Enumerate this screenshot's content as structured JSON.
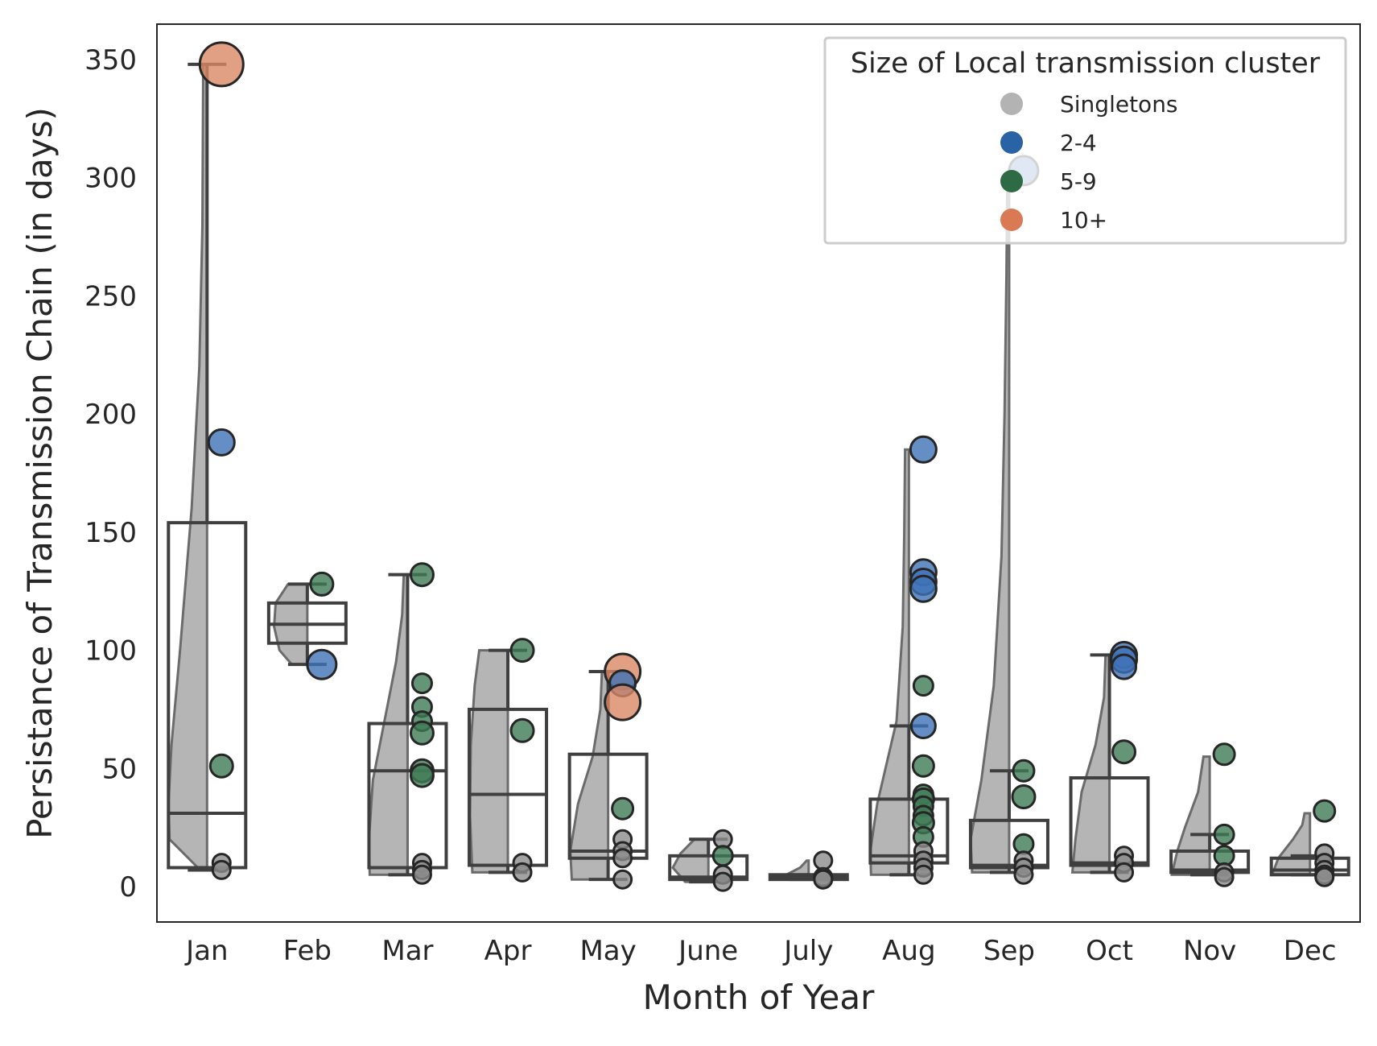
{
  "chart_data": {
    "type": "raincloud",
    "xlabel": "Month of Year",
    "ylabel": "Persistance of Transmission Chain (in days)",
    "ylim": [
      -15,
      365
    ],
    "yticks": [
      0,
      50,
      100,
      150,
      200,
      250,
      300,
      350
    ],
    "categories": [
      "Jan",
      "Feb",
      "Mar",
      "Apr",
      "May",
      "June",
      "July",
      "Aug",
      "Sep",
      "Oct",
      "Nov",
      "Dec"
    ],
    "grid": false,
    "legend": {
      "title": "Size of Local transmission cluster",
      "position": "top-right",
      "entries": [
        {
          "label": "Singletons",
          "color": "#b3b3b3"
        },
        {
          "label": "2-4",
          "color": "#2a62a6"
        },
        {
          "label": "5-9",
          "color": "#2e6b45"
        },
        {
          "label": "10+",
          "color": "#d97a55"
        }
      ]
    },
    "colors": {
      "Singletons": "#8c8c8c",
      "2-4": "#3f72b6",
      "5-9": "#3f7a55",
      "10+": "#d98764",
      "cloud": "#b5b5b5",
      "cloud_edge": "#6b6b6b",
      "box": "#3f3f3f"
    },
    "boxes": [
      {
        "month": "Jan",
        "q1": 8,
        "median": 31,
        "q3": 154,
        "whisker_low": 7,
        "whisker_high": 348
      },
      {
        "month": "Feb",
        "q1": 103,
        "median": 111,
        "q3": 120,
        "whisker_low": 94,
        "whisker_high": 128
      },
      {
        "month": "Mar",
        "q1": 8,
        "median": 49,
        "q3": 69,
        "whisker_low": 5,
        "whisker_high": 132
      },
      {
        "month": "Apr",
        "q1": 9,
        "median": 39,
        "q3": 75,
        "whisker_low": 6,
        "whisker_high": 100
      },
      {
        "month": "May",
        "q1": 12,
        "median": 15,
        "q3": 56,
        "whisker_low": 3,
        "whisker_high": 91
      },
      {
        "month": "June",
        "q1": 3,
        "median": 4,
        "q3": 13,
        "whisker_low": 2,
        "whisker_high": 20
      },
      {
        "month": "July",
        "q1": 3,
        "median": 4,
        "q3": 5,
        "whisker_low": 3,
        "whisker_high": 5
      },
      {
        "month": "Aug",
        "q1": 10,
        "median": 13,
        "q3": 37,
        "whisker_low": 5,
        "whisker_high": 68
      },
      {
        "month": "Sep",
        "q1": 8,
        "median": 9,
        "q3": 28,
        "whisker_low": 6,
        "whisker_high": 49
      },
      {
        "month": "Oct",
        "q1": 9,
        "median": 10,
        "q3": 46,
        "whisker_low": 6,
        "whisker_high": 98
      },
      {
        "month": "Nov",
        "q1": 6,
        "median": 7,
        "q3": 15,
        "whisker_low": 5,
        "whisker_high": 22
      },
      {
        "month": "Dec",
        "q1": 5,
        "median": 7,
        "q3": 12,
        "whisker_low": 5,
        "whisker_high": 13
      }
    ],
    "clouds": [
      {
        "month": "Jan",
        "profile": [
          [
            7,
            0.18
          ],
          [
            20,
            0.97
          ],
          [
            35,
            1
          ],
          [
            60,
            0.92
          ],
          [
            100,
            0.7
          ],
          [
            160,
            0.4
          ],
          [
            220,
            0.2
          ],
          [
            280,
            0.12
          ],
          [
            348,
            0.1
          ]
        ]
      },
      {
        "month": "Feb",
        "profile": [
          [
            94,
            0.4
          ],
          [
            100,
            0.72
          ],
          [
            110,
            0.86
          ],
          [
            120,
            0.82
          ],
          [
            128,
            0.5
          ]
        ]
      },
      {
        "month": "Mar",
        "profile": [
          [
            5,
            0.98
          ],
          [
            20,
            1
          ],
          [
            45,
            0.9
          ],
          [
            70,
            0.6
          ],
          [
            95,
            0.3
          ],
          [
            115,
            0.14
          ],
          [
            132,
            0.1
          ]
        ]
      },
      {
        "month": "Apr",
        "profile": [
          [
            6,
            0.92
          ],
          [
            30,
            0.98
          ],
          [
            60,
            0.96
          ],
          [
            85,
            0.86
          ],
          [
            100,
            0.74
          ]
        ]
      },
      {
        "month": "May",
        "profile": [
          [
            3,
            0.94
          ],
          [
            15,
            0.98
          ],
          [
            35,
            0.78
          ],
          [
            55,
            0.4
          ],
          [
            75,
            0.2
          ],
          [
            91,
            0.16
          ]
        ]
      },
      {
        "month": "June",
        "profile": [
          [
            2,
            0.6
          ],
          [
            8,
            0.92
          ],
          [
            14,
            0.72
          ],
          [
            20,
            0.36
          ]
        ]
      },
      {
        "month": "July",
        "profile": [
          [
            3,
            0.86
          ],
          [
            5,
            0.58
          ],
          [
            8,
            0.22
          ],
          [
            11,
            0.05
          ]
        ]
      },
      {
        "month": "Aug",
        "profile": [
          [
            5,
            0.98
          ],
          [
            15,
            1
          ],
          [
            35,
            0.82
          ],
          [
            70,
            0.32
          ],
          [
            110,
            0.16
          ],
          [
            150,
            0.12
          ],
          [
            185,
            0.1
          ]
        ]
      },
      {
        "month": "Sep",
        "profile": [
          [
            6,
            0.96
          ],
          [
            20,
            1
          ],
          [
            45,
            0.72
          ],
          [
            85,
            0.4
          ],
          [
            140,
            0.2
          ],
          [
            200,
            0.12
          ],
          [
            260,
            0.07
          ],
          [
            300,
            0.05
          ]
        ]
      },
      {
        "month": "Oct",
        "profile": [
          [
            6,
            0.96
          ],
          [
            20,
            0.88
          ],
          [
            40,
            0.72
          ],
          [
            60,
            0.36
          ],
          [
            80,
            0.14
          ],
          [
            98,
            0.1
          ]
        ]
      },
      {
        "month": "Nov",
        "profile": [
          [
            5,
            0.98
          ],
          [
            15,
            0.84
          ],
          [
            25,
            0.64
          ],
          [
            40,
            0.3
          ],
          [
            55,
            0.16
          ]
        ]
      },
      {
        "month": "Dec",
        "profile": [
          [
            5,
            0.98
          ],
          [
            12,
            0.82
          ],
          [
            20,
            0.44
          ],
          [
            26,
            0.2
          ],
          [
            31,
            0.14
          ]
        ]
      }
    ],
    "points": [
      {
        "month": "Jan",
        "y": 348,
        "group": "10+",
        "size": 27
      },
      {
        "month": "Jan",
        "y": 188,
        "group": "2-4",
        "size": 16
      },
      {
        "month": "Jan",
        "y": 51,
        "group": "5-9",
        "size": 14
      },
      {
        "month": "Jan",
        "y": 10,
        "group": "Singletons",
        "size": 11
      },
      {
        "month": "Jan",
        "y": 7,
        "group": "Singletons",
        "size": 11
      },
      {
        "month": "Feb",
        "y": 128,
        "group": "5-9",
        "size": 14
      },
      {
        "month": "Feb",
        "y": 94,
        "group": "2-4",
        "size": 18
      },
      {
        "month": "Mar",
        "y": 132,
        "group": "5-9",
        "size": 14
      },
      {
        "month": "Mar",
        "y": 86,
        "group": "5-9",
        "size": 12
      },
      {
        "month": "Mar",
        "y": 76,
        "group": "5-9",
        "size": 12
      },
      {
        "month": "Mar",
        "y": 70,
        "group": "5-9",
        "size": 12
      },
      {
        "month": "Mar",
        "y": 65,
        "group": "5-9",
        "size": 14
      },
      {
        "month": "Mar",
        "y": 49,
        "group": "5-9",
        "size": 14
      },
      {
        "month": "Mar",
        "y": 47,
        "group": "5-9",
        "size": 14
      },
      {
        "month": "Mar",
        "y": 10,
        "group": "Singletons",
        "size": 11
      },
      {
        "month": "Mar",
        "y": 7,
        "group": "Singletons",
        "size": 11
      },
      {
        "month": "Mar",
        "y": 5,
        "group": "Singletons",
        "size": 11
      },
      {
        "month": "Apr",
        "y": 100,
        "group": "5-9",
        "size": 14
      },
      {
        "month": "Apr",
        "y": 66,
        "group": "5-9",
        "size": 14
      },
      {
        "month": "Apr",
        "y": 10,
        "group": "Singletons",
        "size": 11
      },
      {
        "month": "Apr",
        "y": 6,
        "group": "Singletons",
        "size": 11
      },
      {
        "month": "May",
        "y": 91,
        "group": "10+",
        "size": 22
      },
      {
        "month": "May",
        "y": 86,
        "group": "2-4",
        "size": 16
      },
      {
        "month": "May",
        "y": 78,
        "group": "10+",
        "size": 22
      },
      {
        "month": "May",
        "y": 33,
        "group": "5-9",
        "size": 13
      },
      {
        "month": "May",
        "y": 20,
        "group": "Singletons",
        "size": 11
      },
      {
        "month": "May",
        "y": 15,
        "group": "Singletons",
        "size": 11
      },
      {
        "month": "May",
        "y": 12,
        "group": "Singletons",
        "size": 11
      },
      {
        "month": "May",
        "y": 3,
        "group": "Singletons",
        "size": 11
      },
      {
        "month": "June",
        "y": 20,
        "group": "Singletons",
        "size": 11
      },
      {
        "month": "June",
        "y": 13,
        "group": "5-9",
        "size": 12
      },
      {
        "month": "June",
        "y": 5,
        "group": "Singletons",
        "size": 11
      },
      {
        "month": "June",
        "y": 2,
        "group": "Singletons",
        "size": 11
      },
      {
        "month": "July",
        "y": 11,
        "group": "Singletons",
        "size": 11
      },
      {
        "month": "July",
        "y": 4,
        "group": "Singletons",
        "size": 11
      },
      {
        "month": "July",
        "y": 3,
        "group": "Singletons",
        "size": 11
      },
      {
        "month": "Aug",
        "y": 185,
        "group": "2-4",
        "size": 16
      },
      {
        "month": "Aug",
        "y": 133,
        "group": "2-4",
        "size": 16
      },
      {
        "month": "Aug",
        "y": 129,
        "group": "2-4",
        "size": 16
      },
      {
        "month": "Aug",
        "y": 126,
        "group": "2-4",
        "size": 16
      },
      {
        "month": "Aug",
        "y": 85,
        "group": "5-9",
        "size": 12
      },
      {
        "month": "Aug",
        "y": 68,
        "group": "2-4",
        "size": 15
      },
      {
        "month": "Aug",
        "y": 51,
        "group": "5-9",
        "size": 13
      },
      {
        "month": "Aug",
        "y": 39,
        "group": "5-9",
        "size": 12
      },
      {
        "month": "Aug",
        "y": 37,
        "group": "5-9",
        "size": 13
      },
      {
        "month": "Aug",
        "y": 34,
        "group": "5-9",
        "size": 12
      },
      {
        "month": "Aug",
        "y": 30,
        "group": "5-9",
        "size": 12
      },
      {
        "month": "Aug",
        "y": 27,
        "group": "5-9",
        "size": 13
      },
      {
        "month": "Aug",
        "y": 21,
        "group": "5-9",
        "size": 12
      },
      {
        "month": "Aug",
        "y": 15,
        "group": "Singletons",
        "size": 11
      },
      {
        "month": "Aug",
        "y": 11,
        "group": "Singletons",
        "size": 11
      },
      {
        "month": "Aug",
        "y": 8,
        "group": "Singletons",
        "size": 11
      },
      {
        "month": "Aug",
        "y": 5,
        "group": "Singletons",
        "size": 11
      },
      {
        "month": "Sep",
        "y": 303,
        "group": "2-4",
        "size": 18
      },
      {
        "month": "Sep",
        "y": 49,
        "group": "5-9",
        "size": 13
      },
      {
        "month": "Sep",
        "y": 38,
        "group": "5-9",
        "size": 14
      },
      {
        "month": "Sep",
        "y": 18,
        "group": "5-9",
        "size": 12
      },
      {
        "month": "Sep",
        "y": 11,
        "group": "Singletons",
        "size": 11
      },
      {
        "month": "Sep",
        "y": 8,
        "group": "Singletons",
        "size": 11
      },
      {
        "month": "Sep",
        "y": 5,
        "group": "Singletons",
        "size": 11
      },
      {
        "month": "Oct",
        "y": 98,
        "group": "2-4",
        "size": 16
      },
      {
        "month": "Oct",
        "y": 96,
        "group": "2-4",
        "size": 16
      },
      {
        "month": "Oct",
        "y": 93,
        "group": "2-4",
        "size": 15
      },
      {
        "month": "Oct",
        "y": 57,
        "group": "5-9",
        "size": 14
      },
      {
        "month": "Oct",
        "y": 13,
        "group": "Singletons",
        "size": 11
      },
      {
        "month": "Oct",
        "y": 10,
        "group": "Singletons",
        "size": 11
      },
      {
        "month": "Oct",
        "y": 6,
        "group": "Singletons",
        "size": 11
      },
      {
        "month": "Nov",
        "y": 56,
        "group": "5-9",
        "size": 13
      },
      {
        "month": "Nov",
        "y": 22,
        "group": "5-9",
        "size": 12
      },
      {
        "month": "Nov",
        "y": 13,
        "group": "5-9",
        "size": 12
      },
      {
        "month": "Nov",
        "y": 6,
        "group": "Singletons",
        "size": 11
      },
      {
        "month": "Nov",
        "y": 4,
        "group": "Singletons",
        "size": 11
      },
      {
        "month": "Dec",
        "y": 32,
        "group": "5-9",
        "size": 13
      },
      {
        "month": "Dec",
        "y": 14,
        "group": "Singletons",
        "size": 11
      },
      {
        "month": "Dec",
        "y": 10,
        "group": "Singletons",
        "size": 11
      },
      {
        "month": "Dec",
        "y": 7,
        "group": "Singletons",
        "size": 11
      },
      {
        "month": "Dec",
        "y": 5,
        "group": "Singletons",
        "size": 11
      },
      {
        "month": "Dec",
        "y": 4,
        "group": "Singletons",
        "size": 11
      }
    ]
  }
}
